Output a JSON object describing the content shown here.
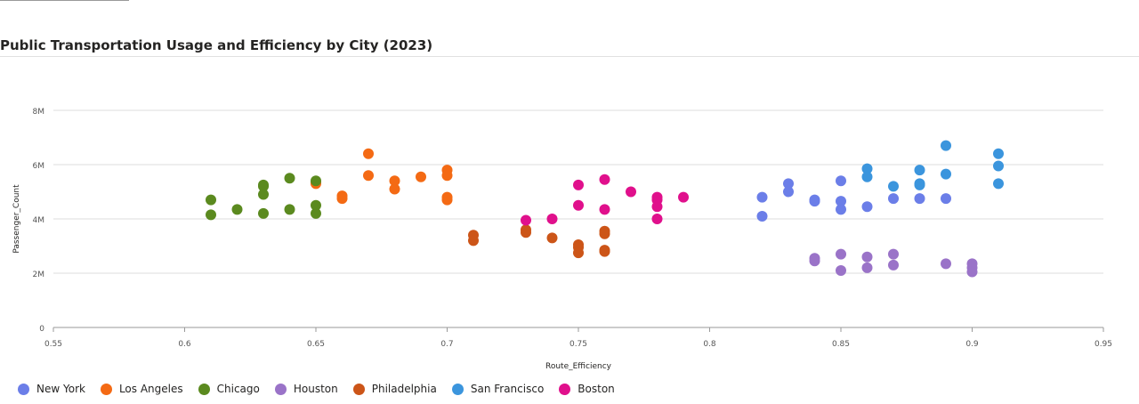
{
  "title": "Public Transportation Usage and Efficiency by City (2023)",
  "chart_data": {
    "type": "scatter",
    "title": "Public Transportation Usage and Efficiency by City (2023)",
    "xlabel": "Route_Efficiency",
    "ylabel": "Passenger_Count",
    "xlim": [
      0.55,
      0.95
    ],
    "ylim": [
      0,
      8000000
    ],
    "x_ticks": [
      "0.55",
      "0.6",
      "0.65",
      "0.7",
      "0.75",
      "0.8",
      "0.85",
      "0.9",
      "0.95"
    ],
    "y_ticks": [
      "0",
      "2M",
      "4M",
      "6M",
      "8M"
    ],
    "grid": true,
    "legend_position": "bottom-left",
    "series": [
      {
        "name": "New York",
        "color": "#6b7ee8",
        "points": [
          [
            0.82,
            4.8
          ],
          [
            0.82,
            4.1
          ],
          [
            0.83,
            5.3
          ],
          [
            0.83,
            5.0
          ],
          [
            0.84,
            4.7
          ],
          [
            0.84,
            4.65
          ],
          [
            0.85,
            5.4
          ],
          [
            0.85,
            4.65
          ],
          [
            0.85,
            4.35
          ],
          [
            0.86,
            4.45
          ],
          [
            0.87,
            4.75
          ],
          [
            0.88,
            4.75
          ],
          [
            0.89,
            4.75
          ]
        ]
      },
      {
        "name": "Los Angeles",
        "color": "#f46a14",
        "points": [
          [
            0.65,
            5.35
          ],
          [
            0.65,
            5.3
          ],
          [
            0.66,
            4.85
          ],
          [
            0.66,
            4.75
          ],
          [
            0.67,
            6.4
          ],
          [
            0.67,
            5.6
          ],
          [
            0.68,
            5.4
          ],
          [
            0.68,
            5.1
          ],
          [
            0.69,
            5.55
          ],
          [
            0.7,
            5.8
          ],
          [
            0.7,
            5.6
          ],
          [
            0.7,
            4.8
          ],
          [
            0.7,
            4.7
          ]
        ]
      },
      {
        "name": "Chicago",
        "color": "#5b8a1f",
        "points": [
          [
            0.61,
            4.7
          ],
          [
            0.61,
            4.15
          ],
          [
            0.62,
            4.35
          ],
          [
            0.63,
            5.25
          ],
          [
            0.63,
            5.2
          ],
          [
            0.63,
            4.9
          ],
          [
            0.63,
            4.2
          ],
          [
            0.64,
            5.5
          ],
          [
            0.64,
            4.35
          ],
          [
            0.65,
            5.4
          ],
          [
            0.65,
            4.5
          ],
          [
            0.65,
            4.2
          ]
        ]
      },
      {
        "name": "Houston",
        "color": "#9a73c8",
        "points": [
          [
            0.84,
            2.55
          ],
          [
            0.84,
            2.45
          ],
          [
            0.85,
            2.7
          ],
          [
            0.85,
            2.1
          ],
          [
            0.86,
            2.6
          ],
          [
            0.86,
            2.2
          ],
          [
            0.87,
            2.7
          ],
          [
            0.87,
            2.3
          ],
          [
            0.89,
            2.35
          ],
          [
            0.9,
            2.35
          ],
          [
            0.9,
            2.2
          ],
          [
            0.9,
            2.05
          ]
        ]
      },
      {
        "name": "Philadelphia",
        "color": "#cc5518",
        "points": [
          [
            0.71,
            3.4
          ],
          [
            0.71,
            3.2
          ],
          [
            0.73,
            3.6
          ],
          [
            0.73,
            3.5
          ],
          [
            0.74,
            3.3
          ],
          [
            0.75,
            3.05
          ],
          [
            0.75,
            2.95
          ],
          [
            0.75,
            2.75
          ],
          [
            0.76,
            3.55
          ],
          [
            0.76,
            3.45
          ],
          [
            0.76,
            2.85
          ],
          [
            0.76,
            2.8
          ]
        ]
      },
      {
        "name": "San Francisco",
        "color": "#3b95dd",
        "points": [
          [
            0.86,
            5.85
          ],
          [
            0.86,
            5.55
          ],
          [
            0.87,
            5.2
          ],
          [
            0.88,
            5.8
          ],
          [
            0.88,
            5.3
          ],
          [
            0.88,
            5.25
          ],
          [
            0.89,
            6.7
          ],
          [
            0.89,
            5.65
          ],
          [
            0.91,
            6.4
          ],
          [
            0.91,
            5.95
          ],
          [
            0.91,
            5.3
          ]
        ]
      },
      {
        "name": "Boston",
        "color": "#e0108c",
        "points": [
          [
            0.73,
            3.95
          ],
          [
            0.74,
            4.0
          ],
          [
            0.75,
            5.25
          ],
          [
            0.75,
            4.5
          ],
          [
            0.76,
            5.45
          ],
          [
            0.76,
            4.35
          ],
          [
            0.77,
            5.0
          ],
          [
            0.78,
            4.8
          ],
          [
            0.78,
            4.7
          ],
          [
            0.78,
            4.45
          ],
          [
            0.78,
            4.0
          ],
          [
            0.79,
            4.8
          ]
        ]
      }
    ]
  }
}
